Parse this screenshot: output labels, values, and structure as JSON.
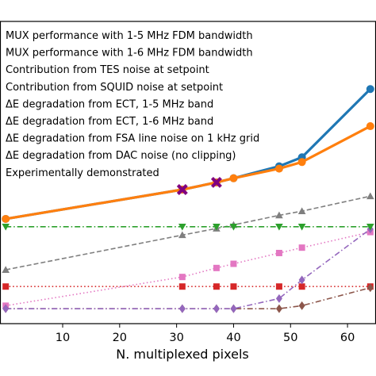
{
  "chart_data": {
    "type": "line",
    "xlabel": "N. multiplexed pixels",
    "ylabel": "",
    "title": "",
    "xlim": [
      -1,
      65
    ],
    "ylim": [
      -0.3,
      4.75
    ],
    "x_ticks": [
      10,
      20,
      30,
      40,
      50,
      60
    ],
    "grid": false,
    "legend_position": "upper-left",
    "series": [
      {
        "name": "MUX performance with 1-5 MHz FDM bandwidth",
        "color": "#1f77b4",
        "marker": "circle",
        "linestyle": "solid",
        "x": [
          0,
          31,
          37,
          40,
          48,
          52,
          64
        ],
        "y": [
          1.45,
          1.94,
          2.06,
          2.13,
          2.33,
          2.48,
          3.62
        ]
      },
      {
        "name": "MUX performance with 1-6 MHz FDM bandwidth",
        "color": "#ff7f0e",
        "marker": "circle",
        "linestyle": "solid",
        "x": [
          0,
          31,
          37,
          40,
          48,
          52,
          64
        ],
        "y": [
          1.45,
          1.94,
          2.06,
          2.13,
          2.29,
          2.4,
          3.0
        ]
      },
      {
        "name": "Contribution from TES noise at setpoint",
        "color": "#2ca02c",
        "marker": "triangle-down",
        "linestyle": "dashdot",
        "x": [
          0,
          31,
          37,
          40,
          48,
          52,
          64
        ],
        "y": [
          1.32,
          1.32,
          1.32,
          1.32,
          1.32,
          1.32,
          1.32
        ]
      },
      {
        "name": "Contribution from SQUID noise at setpoint",
        "color": "#7f7f7f",
        "marker": "triangle-up",
        "linestyle": "dashed",
        "x": [
          0,
          31,
          37,
          40,
          48,
          52,
          64
        ],
        "y": [
          0.6,
          1.18,
          1.29,
          1.35,
          1.51,
          1.58,
          1.83
        ]
      },
      {
        "name": "ΔE degradation from ECT, 1-5 MHz band",
        "color": "#9467bd",
        "marker": "diamond",
        "linestyle": "dashdot",
        "x": [
          0,
          31,
          37,
          40,
          48,
          52,
          64
        ],
        "y": [
          -0.05,
          -0.05,
          -0.05,
          -0.05,
          0.12,
          0.43,
          1.28
        ]
      },
      {
        "name": "ΔE degradation from ECT, 1-6 MHz band",
        "color": "#8c564b",
        "marker": "diamond",
        "linestyle": "dashdot",
        "x": [
          0,
          31,
          37,
          40,
          48,
          52,
          64
        ],
        "y": [
          -0.05,
          -0.05,
          -0.05,
          -0.05,
          -0.05,
          0.0,
          0.3
        ]
      },
      {
        "name": "ΔE degradation from FSA line noise on 1 kHz grid",
        "color": "#e377c2",
        "marker": "square",
        "linestyle": "dotted",
        "x": [
          0,
          31,
          37,
          40,
          48,
          52,
          64
        ],
        "y": [
          0.0,
          0.48,
          0.63,
          0.7,
          0.88,
          0.97,
          1.23
        ]
      },
      {
        "name": "ΔE degradation from DAC noise (no clipping)",
        "color": "#d62728",
        "marker": "square",
        "linestyle": "dotted",
        "x": [
          0,
          31,
          37,
          40,
          48,
          52,
          64
        ],
        "y": [
          0.32,
          0.32,
          0.32,
          0.32,
          0.32,
          0.32,
          0.32
        ]
      },
      {
        "name": "Experimentally demonstrated",
        "color": "#800080",
        "marker": "x",
        "linestyle": "none",
        "x": [
          31,
          37
        ],
        "y": [
          1.94,
          2.06
        ]
      }
    ]
  }
}
